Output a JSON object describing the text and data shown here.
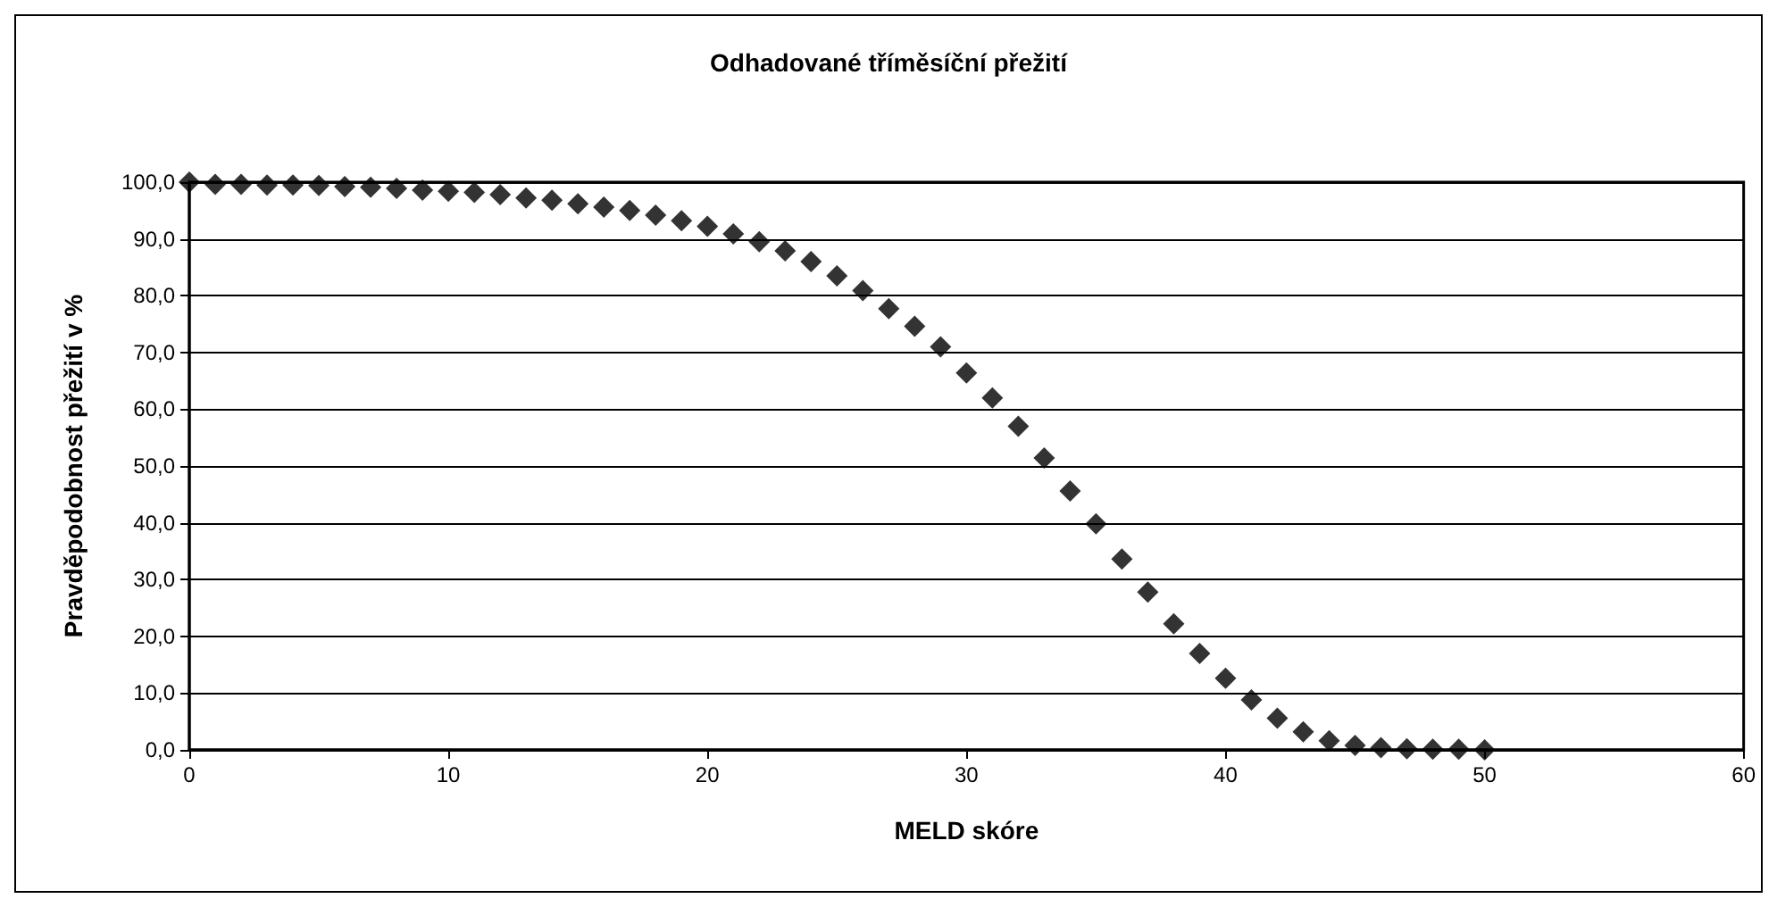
{
  "chart_data": {
    "type": "scatter",
    "title": "Odhadované tříměsíční přežití",
    "xlabel": "MELD skóre",
    "ylabel": "Pravděpodobnost přežití v %",
    "x": [
      0,
      1,
      2,
      3,
      4,
      5,
      6,
      7,
      8,
      9,
      10,
      11,
      12,
      13,
      14,
      15,
      16,
      17,
      18,
      19,
      20,
      21,
      22,
      23,
      24,
      25,
      26,
      27,
      28,
      29,
      30,
      31,
      32,
      33,
      34,
      35,
      36,
      37,
      38,
      39,
      40,
      41,
      42,
      43,
      44,
      45,
      46,
      47,
      48,
      49,
      50
    ],
    "series": [
      {
        "color": "#000000",
        "values": [
          100,
          99.6,
          99.6,
          99.5,
          99.5,
          99.4,
          99.2,
          99.1,
          98.9,
          98.6,
          98.4,
          98.2,
          97.8,
          97.2,
          96.8,
          96.2,
          95.6,
          95.0,
          94.2,
          93.2,
          92.2,
          90.9,
          89.5,
          87.9,
          86.0,
          83.5,
          80.9,
          77.7,
          74.6,
          71.0,
          66.4,
          62.0,
          57.0,
          51.4,
          45.6,
          39.8,
          33.6,
          27.8,
          22.2,
          17.0,
          12.6,
          8.8,
          5.6,
          3.2,
          1.6,
          0.8,
          0.4,
          0.2,
          0.1,
          0.1,
          0.0
        ]
      }
    ],
    "xlim": [
      0,
      60
    ],
    "xticks": [
      0,
      10,
      20,
      30,
      40,
      50,
      60
    ],
    "ylim": [
      0,
      100
    ],
    "yticks": [
      {
        "value": 0,
        "label": "0,0"
      },
      {
        "value": 10,
        "label": "10,0"
      },
      {
        "value": 20,
        "label": "20,0"
      },
      {
        "value": 30,
        "label": "30,0"
      },
      {
        "value": 40,
        "label": "40,0"
      },
      {
        "value": 50,
        "label": "50,0"
      },
      {
        "value": 60,
        "label": "60,0"
      },
      {
        "value": 70,
        "label": "70,0"
      },
      {
        "value": 80,
        "label": "80,0"
      },
      {
        "value": 90,
        "label": "90,0"
      },
      {
        "value": 100,
        "label": "100,0"
      }
    ],
    "grid": "y",
    "marker": "diamond"
  }
}
